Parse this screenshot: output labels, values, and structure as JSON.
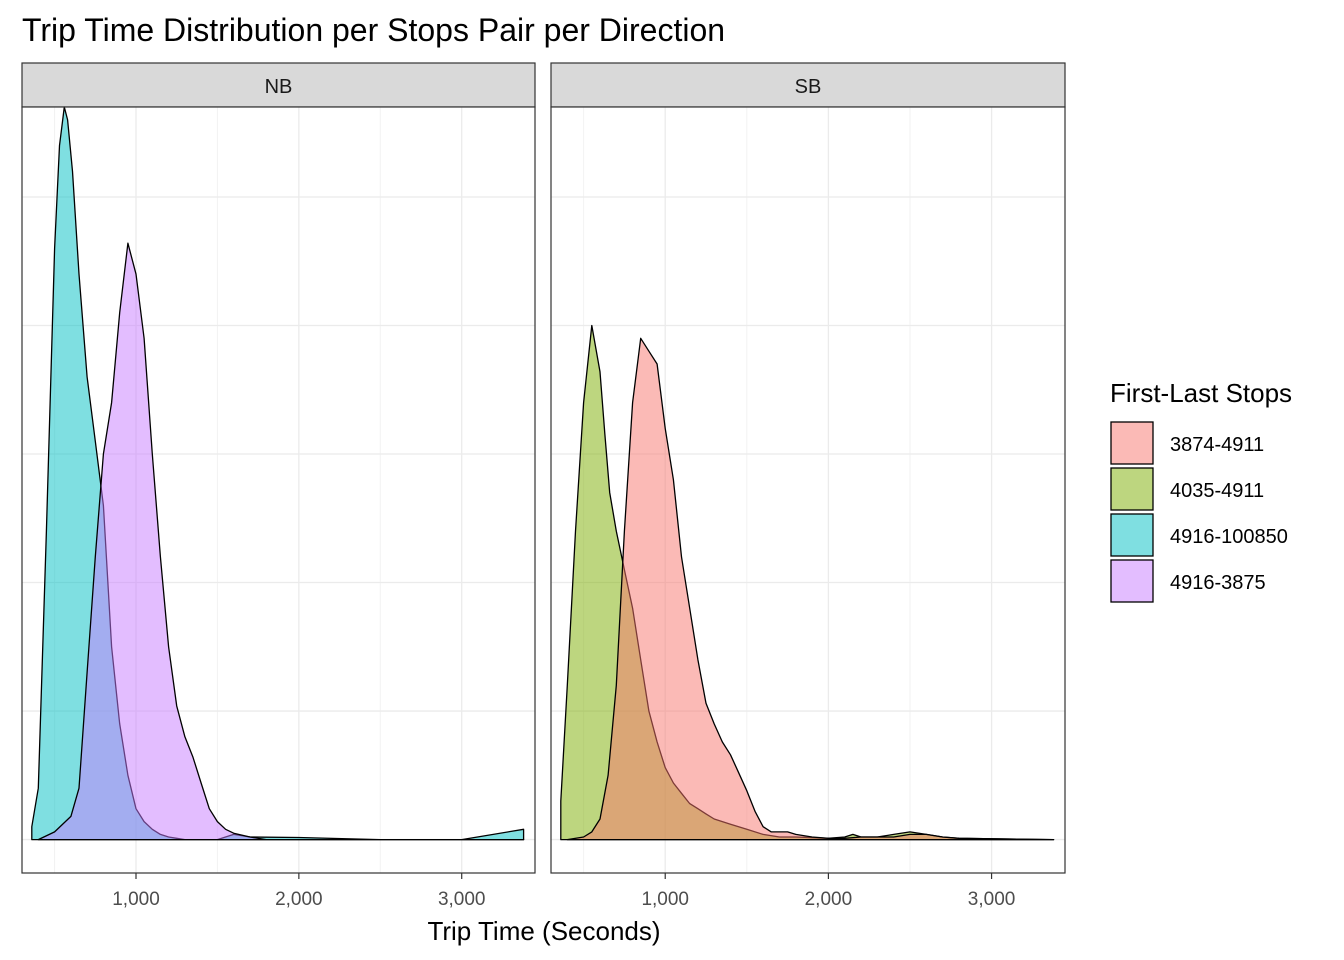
{
  "chart_data": {
    "type": "area",
    "title": "Trip Time Distribution per Stops Pair per Direction",
    "xlabel": "Trip Time (Seconds)",
    "ylabel": "",
    "xlim": [
      300,
      3450
    ],
    "ylim": [
      -0.00013,
      0.00285
    ],
    "x_ticks": [
      1000,
      2000,
      3000
    ],
    "x_tick_labels": [
      "1,000",
      "2,000",
      "3,000"
    ],
    "y_gridlines": [
      0,
      0.0005,
      0.001,
      0.0015,
      0.002,
      0.0025
    ],
    "grid": true,
    "legend": {
      "title": "First-Last Stops",
      "position": "right",
      "entries": [
        {
          "label": "3874-4911",
          "color": "#F8766D"
        },
        {
          "label": "4035-4911",
          "color": "#7CAE00"
        },
        {
          "label": "4916-100850",
          "color": "#00BFC4"
        },
        {
          "label": "4916-3875",
          "color": "#C77CFF"
        }
      ]
    },
    "fill_alpha": 0.5,
    "panels": [
      {
        "strip": "NB",
        "series": [
          {
            "name": "4916-100850",
            "color": "#00BFC4",
            "x": [
              360,
              400,
              450,
              500,
              530,
              560,
              580,
              610,
              650,
              700,
              750,
              800,
              850,
              900,
              950,
              1000,
              1050,
              1100,
              1150,
              1200,
              1250,
              1300,
              1400,
              1500,
              1600,
              1700,
              2000,
              2500,
              3000,
              3380
            ],
            "y": [
              5e-05,
              0.0002,
              0.0012,
              0.0023,
              0.0027,
              0.00285,
              0.0028,
              0.0026,
              0.0022,
              0.0018,
              0.00155,
              0.0013,
              0.00075,
              0.00045,
              0.00025,
              0.00012,
              7e-05,
              4e-05,
              2e-05,
              1e-05,
              5e-06,
              0,
              0,
              0,
              2e-05,
              1e-05,
              8e-06,
              0,
              0,
              4e-05
            ]
          },
          {
            "name": "4916-3875",
            "color": "#C77CFF",
            "x": [
              400,
              500,
              600,
              650,
              700,
              750,
              800,
              850,
              900,
              950,
              1000,
              1050,
              1100,
              1150,
              1200,
              1250,
              1300,
              1350,
              1400,
              1450,
              1500,
              1550,
              1600,
              1700,
              1800,
              2000,
              2500,
              3000,
              3380
            ],
            "y": [
              0,
              3e-05,
              9e-05,
              0.0002,
              0.00065,
              0.0011,
              0.0015,
              0.0017,
              0.00205,
              0.00232,
              0.0022,
              0.00195,
              0.0015,
              0.0011,
              0.00075,
              0.00052,
              0.0004,
              0.00032,
              0.00022,
              0.00012,
              7e-05,
              4e-05,
              2.5e-05,
              1e-05,
              0,
              0,
              0,
              0,
              0
            ]
          }
        ]
      },
      {
        "strip": "SB",
        "series": [
          {
            "name": "4035-4911",
            "color": "#7CAE00",
            "x": [
              360,
              400,
              450,
              500,
              550,
              600,
              630,
              660,
              700,
              750,
              800,
              850,
              900,
              950,
              1000,
              1050,
              1100,
              1150,
              1200,
              1250,
              1300,
              1400,
              1500,
              1600,
              1700,
              1800,
              2000,
              2100,
              2150,
              2200,
              2300,
              2400,
              2500,
              2600,
              2700,
              2800,
              3000,
              3380
            ],
            "y": [
              0.00015,
              0.0006,
              0.0012,
              0.0017,
              0.002,
              0.00182,
              0.00158,
              0.00135,
              0.0012,
              0.00105,
              0.0009,
              0.0007,
              0.0005,
              0.00038,
              0.00028,
              0.00022,
              0.00018,
              0.00014,
              0.00012,
              0.0001,
              8e-05,
              6e-05,
              4e-05,
              2e-05,
              1e-05,
              1e-05,
              5e-06,
              1e-05,
              2e-05,
              1e-05,
              1e-05,
              2e-05,
              3e-05,
              2e-05,
              1e-05,
              5e-06,
              3e-06,
              0
            ]
          },
          {
            "name": "3874-4911",
            "color": "#F8766D",
            "x": [
              400,
              500,
              550,
              600,
              650,
              700,
              750,
              800,
              850,
              900,
              950,
              1000,
              1050,
              1100,
              1150,
              1200,
              1250,
              1300,
              1350,
              1400,
              1450,
              1500,
              1550,
              1600,
              1650,
              1700,
              1750,
              1800,
              1900,
              2000,
              2100,
              2200,
              2300,
              2400,
              2500,
              2600,
              2700,
              2800,
              3000,
              3380
            ],
            "y": [
              0,
              1e-05,
              3e-05,
              8e-05,
              0.00025,
              0.0006,
              0.0012,
              0.0017,
              0.00195,
              0.0019,
              0.00185,
              0.0016,
              0.0014,
              0.0011,
              0.0009,
              0.0007,
              0.00053,
              0.00045,
              0.00038,
              0.00033,
              0.00026,
              0.00019,
              0.00011,
              5e-05,
              3e-05,
              3e-05,
              3e-05,
              2e-05,
              1e-05,
              5e-06,
              5e-06,
              1e-05,
              1e-05,
              1e-05,
              2e-05,
              2e-05,
              1e-05,
              5e-06,
              3e-06,
              0
            ]
          }
        ]
      }
    ]
  }
}
